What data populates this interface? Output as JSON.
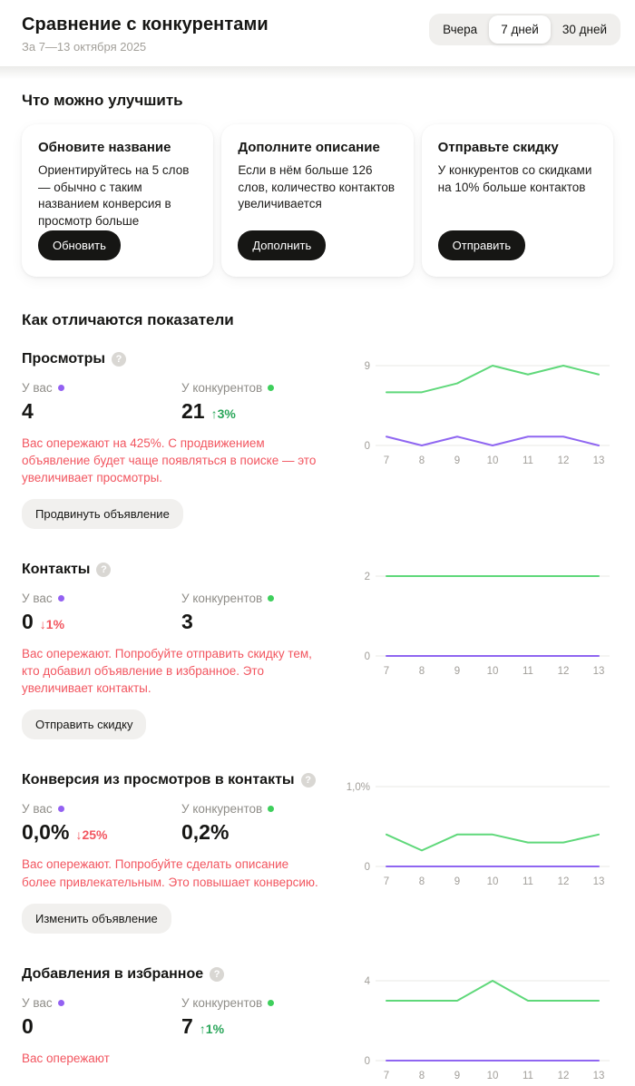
{
  "header": {
    "title": "Сравнение с конкурентами",
    "subtitle": "За 7—13 октября 2025",
    "period_tabs": [
      {
        "label": "Вчера",
        "active": false
      },
      {
        "label": "7 дней",
        "active": true
      },
      {
        "label": "30 дней",
        "active": false
      }
    ]
  },
  "icons": {
    "help": "?"
  },
  "improvements": {
    "heading": "Что можно улучшить",
    "cards": [
      {
        "title": "Обновите название",
        "body": "Ориентируйтесь на 5 слов — обычно с таким названием конверсия в просмотр больше",
        "button": "Обновить"
      },
      {
        "title": "Дополните описание",
        "body": "Если в нём больше 126 слов, количество контактов увеличивается",
        "button": "Дополнить"
      },
      {
        "title": "Отправьте скидку",
        "body": "У конкурентов со скидками на 10% больше контактов",
        "button": "Отправить"
      }
    ]
  },
  "metrics": {
    "heading": "Как отличаются показатели",
    "you_label": "У вас",
    "competitors_label": "У конкурентов",
    "blocks": [
      {
        "title": "Просмотры",
        "you_value": "4",
        "comp_value": "21",
        "comp_delta": "↑3%",
        "note": "Вас опережают на 425%. С продвижением объявление будет чаще появляться в поиске — это увеличивает просмотры.",
        "button": "Продвинуть объявление"
      },
      {
        "title": "Контакты",
        "you_value": "0",
        "you_delta": "↓1%",
        "comp_value": "3",
        "note": "Вас опережают. Попробуйте отправить скидку тем, кто добавил объявление в избранное. Это увеличивает контакты.",
        "button": "Отправить скидку"
      },
      {
        "title": "Конверсия из просмотров в контакты",
        "you_value": "0,0%",
        "you_delta": "↓25%",
        "comp_value": "0,2%",
        "note": "Вас опережают. Попробуйте сделать описание более привлекательным. Это повышает конверсию.",
        "button": "Изменить объявление"
      },
      {
        "title": "Добавления в избранное",
        "you_value": "0",
        "comp_value": "7",
        "comp_delta": "↑1%",
        "note": "Вас опережают"
      }
    ]
  },
  "chart_data": [
    {
      "type": "line",
      "title": "Просмотры",
      "x": [
        7,
        8,
        9,
        10,
        11,
        12,
        13
      ],
      "series": [
        {
          "name": "У вас",
          "color": "#8f66f1",
          "values": [
            1,
            0,
            1,
            0,
            1,
            1,
            0
          ]
        },
        {
          "name": "У конкурентов",
          "color": "#5fd87a",
          "values": [
            6,
            6,
            7,
            9,
            8,
            9,
            8
          ]
        }
      ],
      "ylim": [
        0,
        9
      ],
      "ymax_label": "9",
      "ymin_label": "0",
      "grid": "top-bottom-only",
      "legend_position": "none"
    },
    {
      "type": "line",
      "title": "Контакты",
      "x": [
        7,
        8,
        9,
        10,
        11,
        12,
        13
      ],
      "series": [
        {
          "name": "У вас",
          "color": "#8f66f1",
          "values": [
            0,
            0,
            0,
            0,
            0,
            0,
            0
          ]
        },
        {
          "name": "У конкурентов",
          "color": "#5fd87a",
          "values": [
            2,
            2,
            2,
            2,
            2,
            2,
            2
          ]
        }
      ],
      "ylim": [
        0,
        2
      ],
      "ymax_label": "2",
      "ymin_label": "0",
      "grid": "top-bottom-only",
      "legend_position": "none"
    },
    {
      "type": "line",
      "title": "Конверсия из просмотров в контакты",
      "x": [
        7,
        8,
        9,
        10,
        11,
        12,
        13
      ],
      "series": [
        {
          "name": "У вас",
          "color": "#8f66f1",
          "values": [
            0,
            0,
            0,
            0,
            0,
            0,
            0
          ]
        },
        {
          "name": "У конкурентов",
          "color": "#5fd87a",
          "values": [
            0.4,
            0.2,
            0.4,
            0.4,
            0.3,
            0.3,
            0.4
          ]
        }
      ],
      "ylim": [
        0,
        1.0
      ],
      "ymax_label": "1,0%",
      "ymin_label": "0",
      "grid": "top-bottom-only",
      "legend_position": "none"
    },
    {
      "type": "line",
      "title": "Добавления в избранное",
      "x": [
        7,
        8,
        9,
        10,
        11,
        12,
        13
      ],
      "series": [
        {
          "name": "У вас",
          "color": "#8f66f1",
          "values": [
            0,
            0,
            0,
            0,
            0,
            0,
            0
          ]
        },
        {
          "name": "У конкурентов",
          "color": "#5fd87a",
          "values": [
            3,
            3,
            3,
            4,
            3,
            3,
            3
          ]
        }
      ],
      "ylim": [
        0,
        4
      ],
      "ymax_label": "4",
      "ymin_label": "0",
      "grid": "top-bottom-only",
      "legend_position": "none"
    }
  ],
  "colors": {
    "accent_purple": "#9361f2",
    "accent_green": "#3ecf5c",
    "line_purple": "#8f66f1",
    "line_green": "#5fd87a",
    "negative_red": "#f2555f",
    "positive_green": "#2aa65a",
    "button_dark": "#161614",
    "gridline": "#e9e8e5",
    "axis_label": "#a19e99"
  }
}
